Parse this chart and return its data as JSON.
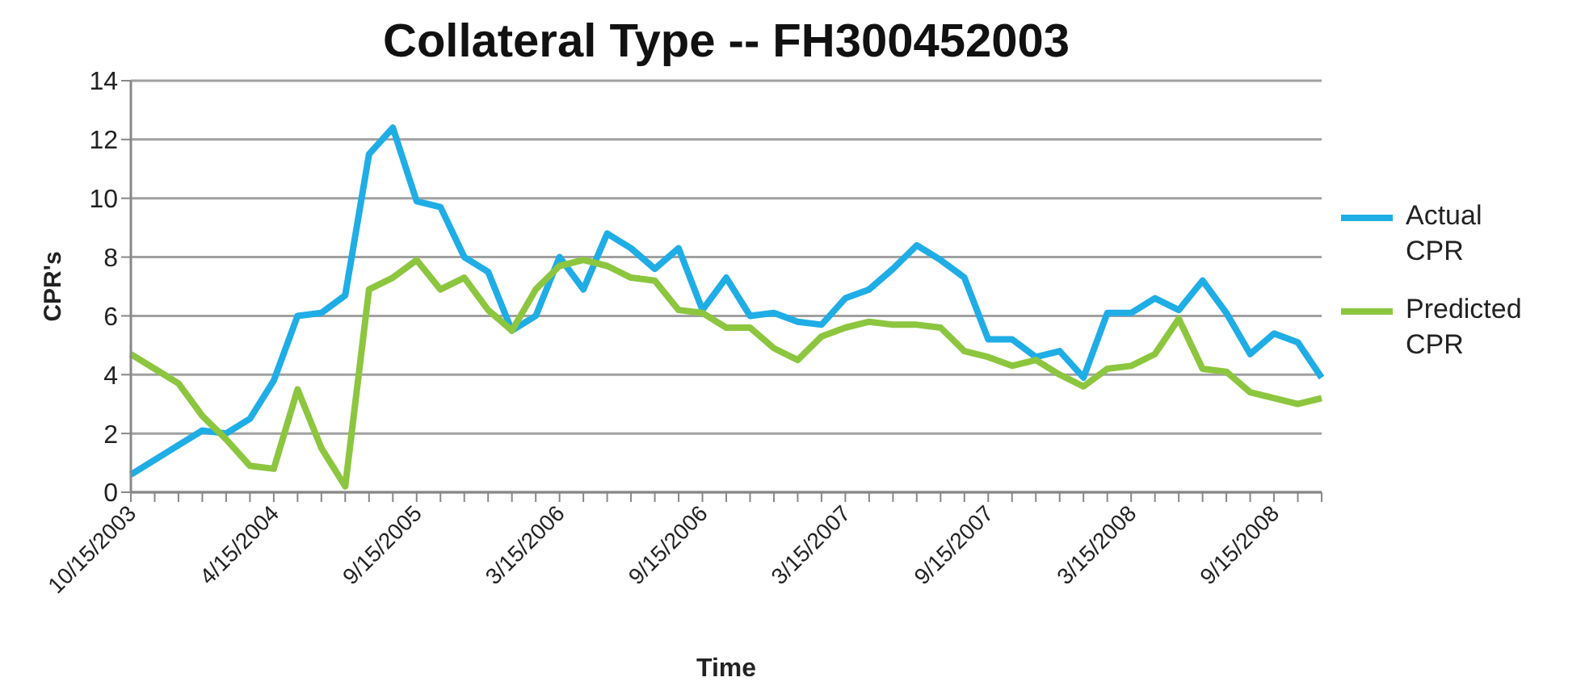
{
  "chart_data": {
    "type": "line",
    "title": "Collateral Type -- FH300452003",
    "xlabel": "Time",
    "ylabel": "CPR's",
    "categories": [
      "10/15/2003",
      null,
      null,
      null,
      null,
      null,
      "4/15/2004",
      null,
      null,
      null,
      null,
      null,
      "9/15/2005",
      null,
      null,
      null,
      null,
      null,
      "3/15/2006",
      null,
      null,
      null,
      null,
      null,
      "9/15/2006",
      null,
      null,
      null,
      null,
      null,
      "3/15/2007",
      null,
      null,
      null,
      null,
      null,
      "9/15/2007",
      null,
      null,
      null,
      null,
      null,
      "3/15/2008",
      null,
      null,
      null,
      null,
      null,
      "9/15/2008",
      null,
      null
    ],
    "series": [
      {
        "name": "Actual CPR",
        "color": "#1fade6",
        "values": [
          0.6,
          1.1,
          1.6,
          2.1,
          2.0,
          2.5,
          3.8,
          6.0,
          6.1,
          6.7,
          11.5,
          12.4,
          9.9,
          9.7,
          8.0,
          7.5,
          5.5,
          6.0,
          8.0,
          6.9,
          8.8,
          8.3,
          7.6,
          8.3,
          6.2,
          7.3,
          6.0,
          6.1,
          5.8,
          5.7,
          6.6,
          6.9,
          7.6,
          8.4,
          7.9,
          7.3,
          5.2,
          5.2,
          4.6,
          4.8,
          3.9,
          6.1,
          6.1,
          6.6,
          6.2,
          7.2,
          6.1,
          4.7,
          5.4,
          5.1,
          3.9
        ]
      },
      {
        "name": "Predicted CPR",
        "color": "#8cc63f",
        "values": [
          4.7,
          4.2,
          3.7,
          2.6,
          1.8,
          0.9,
          0.8,
          3.5,
          1.5,
          0.2,
          6.9,
          7.3,
          7.9,
          6.9,
          7.3,
          6.2,
          5.5,
          6.9,
          7.7,
          7.9,
          7.7,
          7.3,
          7.2,
          6.2,
          6.1,
          5.6,
          5.6,
          4.9,
          4.5,
          5.3,
          5.6,
          5.8,
          5.7,
          5.7,
          5.6,
          4.8,
          4.6,
          4.3,
          4.5,
          4.0,
          3.6,
          4.2,
          4.3,
          4.7,
          5.9,
          4.2,
          4.1,
          3.4,
          3.2,
          3.0,
          3.2
        ]
      }
    ],
    "ylim": [
      0,
      14
    ],
    "yticks": [
      0,
      2,
      4,
      6,
      8,
      10,
      12,
      14
    ],
    "grid": "y",
    "legend": "right",
    "marker": "none",
    "line_style": "solid"
  }
}
